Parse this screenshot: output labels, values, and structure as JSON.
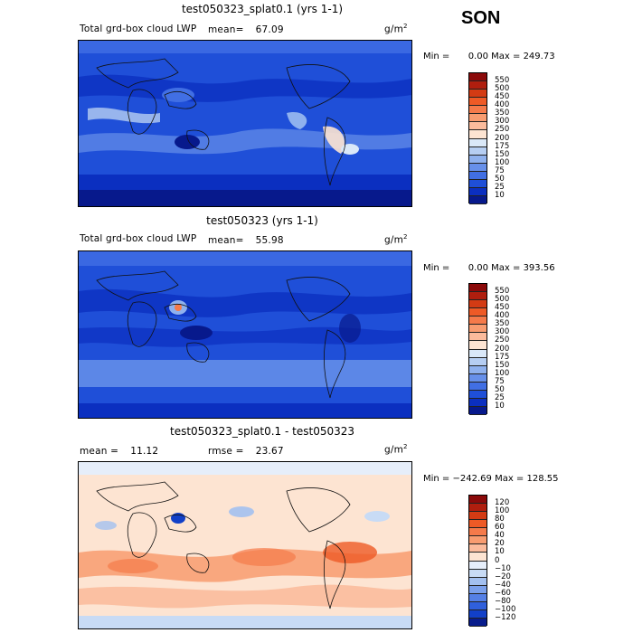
{
  "season": "SON",
  "panels": [
    {
      "title": "test050323_splat0.1 (yrs 1-1)",
      "field_label": "Total grd-box cloud LWP",
      "mean_label": "mean=",
      "mean": "67.09",
      "units": "g/m",
      "units_exp": "2",
      "min_label": "Min =",
      "min": "0.00",
      "max_label": "Max =",
      "max": "249.73",
      "colorbar": [
        "550",
        "500",
        "450",
        "400",
        "350",
        "300",
        "250",
        "200",
        "175",
        "150",
        "100",
        "75",
        "50",
        "25",
        "10"
      ],
      "colors": [
        "#8b0a0a",
        "#b01e0e",
        "#d33b14",
        "#ee5a26",
        "#f57a4a",
        "#f89c70",
        "#fbbb9c",
        "#fde4d2",
        "#dae8f8",
        "#b6cef2",
        "#8fb1ee",
        "#6790ea",
        "#416fe4",
        "#1f4fd8",
        "#0b2fc0",
        "#07198c"
      ]
    },
    {
      "title": "test050323 (yrs 1-1)",
      "field_label": "Total grd-box cloud LWP",
      "mean_label": "mean=",
      "mean": "55.98",
      "units": "g/m",
      "units_exp": "2",
      "min_label": "Min =",
      "min": "0.00",
      "max_label": "Max =",
      "max": "393.56",
      "colorbar": [
        "550",
        "500",
        "450",
        "400",
        "350",
        "300",
        "250",
        "200",
        "175",
        "150",
        "100",
        "75",
        "50",
        "25",
        "10"
      ],
      "colors": [
        "#8b0a0a",
        "#b01e0e",
        "#d33b14",
        "#ee5a26",
        "#f57a4a",
        "#f89c70",
        "#fbbb9c",
        "#fde4d2",
        "#dae8f8",
        "#b6cef2",
        "#8fb1ee",
        "#6790ea",
        "#416fe4",
        "#1f4fd8",
        "#0b2fc0",
        "#07198c"
      ]
    },
    {
      "title": "test050323_splat0.1 - test050323",
      "mean_label": "mean =",
      "mean": "11.12",
      "rmse_label": "rmse =",
      "rmse": "23.67",
      "units": "g/m",
      "units_exp": "2",
      "min_label": "Min =",
      "min": "−242.69",
      "max_label": "Max =",
      "max": "128.55",
      "colorbar": [
        "120",
        "100",
        "80",
        "60",
        "40",
        "20",
        "10",
        "0",
        "−10",
        "−20",
        "−40",
        "−60",
        "−80",
        "−100",
        "−120"
      ],
      "colors": [
        "#8b0a0a",
        "#b01e0e",
        "#d33b14",
        "#ee5a26",
        "#f57a4a",
        "#f89c70",
        "#fbbb9c",
        "#fde4d2",
        "#e6eefa",
        "#c8dbf5",
        "#a3c0f0",
        "#7ba0ec",
        "#5580e6",
        "#3060dc",
        "#1240c8",
        "#081c8c"
      ]
    }
  ]
}
